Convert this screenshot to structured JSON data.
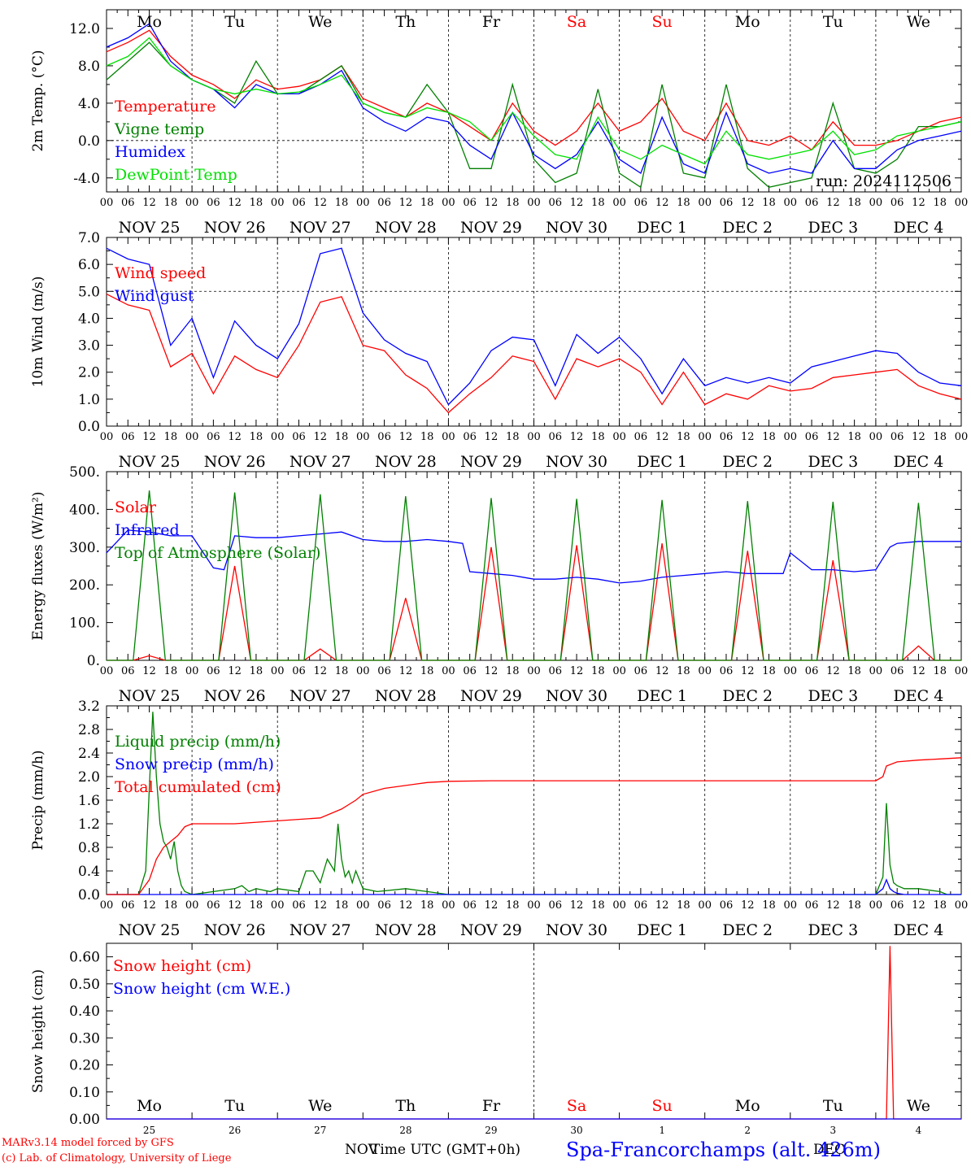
{
  "footer": {
    "model": "MARv3.14 model forced by GFS",
    "credit": "(c) Lab. of Climatology, University of Liege",
    "nov": "NOV",
    "time_label": "Time UTC (GMT+0h)",
    "dec": "DEC",
    "station": "Spa-Francorchamps (alt. 426m)"
  },
  "colors": {
    "red": "#ff0000",
    "green": "#008000",
    "blue": "#0000ff",
    "lightgreen": "#00e000",
    "black": "#000000"
  },
  "time_axis": {
    "hour_ticks": [
      "00",
      "06",
      "12",
      "18"
    ],
    "final_tick": "00",
    "date_labels": [
      "NOV 25",
      "NOV 26",
      "NOV 27",
      "NOV 28",
      "NOV 29",
      "NOV 30",
      "DEC  1",
      "DEC  2",
      "DEC  3",
      "DEC  4"
    ],
    "day_names": [
      "Mo",
      "Tu",
      "We",
      "Th",
      "Fr",
      "Sa",
      "Su",
      "Mo",
      "Tu",
      "We"
    ],
    "weekend_days": [
      5,
      6
    ],
    "day_numbers": [
      "25",
      "26",
      "27",
      "28",
      "29",
      "30",
      "1",
      "2",
      "3",
      "4"
    ]
  },
  "chart_data": [
    {
      "type": "line",
      "ylabel": "2m Temp. (°C)",
      "ylim": [
        -5.5,
        14.0
      ],
      "yticks": [
        -4.0,
        0.0,
        4.0,
        8.0,
        12.0
      ],
      "ytick_labels": [
        "-4.0",
        "0.0",
        "4.0",
        "8.0",
        "12.0"
      ],
      "ref_line": 0.0,
      "annotation": "run: 2024112506",
      "x_unit": "hours since 2024-11-25 00 UTC",
      "series": [
        {
          "name": "Temperature",
          "color": "red",
          "x": [
            0,
            6,
            12,
            18,
            24,
            30,
            36,
            42,
            48,
            54,
            60,
            66,
            72,
            78,
            84,
            90,
            96,
            102,
            108,
            114,
            120,
            126,
            132,
            138,
            144,
            150,
            156,
            162,
            168,
            174,
            180,
            186,
            192,
            198,
            204,
            210,
            216,
            222,
            228,
            234,
            240
          ],
          "y": [
            9.5,
            10.5,
            11.8,
            9.0,
            7.0,
            6.0,
            4.5,
            6.5,
            5.5,
            5.8,
            6.5,
            8.0,
            4.5,
            3.5,
            2.5,
            4.0,
            3.0,
            1.5,
            0.0,
            4.0,
            1.0,
            -0.5,
            1.0,
            4.0,
            1.0,
            2.0,
            4.5,
            1.0,
            0.0,
            4.0,
            0.0,
            -0.5,
            0.5,
            -1.0,
            2.0,
            -0.5,
            -0.5,
            0.0,
            1.0,
            2.0,
            2.5
          ]
        },
        {
          "name": "Vigne temp",
          "color": "green",
          "x": [
            0,
            6,
            12,
            18,
            24,
            30,
            36,
            42,
            48,
            54,
            60,
            66,
            72,
            78,
            84,
            90,
            96,
            102,
            108,
            114,
            120,
            126,
            132,
            138,
            144,
            150,
            156,
            162,
            168,
            174,
            180,
            186,
            192,
            198,
            204,
            210,
            216,
            222,
            228,
            234,
            240
          ],
          "y": [
            6.5,
            8.5,
            10.5,
            8.0,
            6.5,
            5.5,
            4.0,
            8.5,
            5.0,
            5.0,
            6.5,
            8.0,
            4.0,
            3.0,
            2.5,
            6.0,
            3.0,
            -3.0,
            -3.0,
            6.0,
            -2.0,
            -4.5,
            -3.5,
            5.5,
            -3.5,
            -5.0,
            6.0,
            -3.5,
            -4.0,
            6.0,
            -3.0,
            -5.0,
            -4.5,
            -4.0,
            4.0,
            -3.0,
            -3.5,
            -2.0,
            1.5,
            1.5,
            2.0
          ]
        },
        {
          "name": "Humidex",
          "color": "blue",
          "x": [
            0,
            6,
            12,
            18,
            24,
            30,
            36,
            42,
            48,
            54,
            60,
            66,
            72,
            78,
            84,
            90,
            96,
            102,
            108,
            114,
            120,
            126,
            132,
            138,
            144,
            150,
            156,
            162,
            168,
            174,
            180,
            186,
            192,
            198,
            204,
            210,
            216,
            222,
            228,
            234,
            240
          ],
          "y": [
            10.0,
            11.0,
            12.5,
            8.5,
            6.5,
            5.5,
            3.5,
            6.0,
            5.0,
            5.0,
            6.0,
            7.5,
            3.5,
            2.0,
            1.0,
            2.5,
            2.0,
            -0.5,
            -2.0,
            3.0,
            -1.5,
            -3.0,
            -1.5,
            2.0,
            -2.0,
            -3.5,
            2.5,
            -2.5,
            -3.5,
            3.0,
            -2.5,
            -3.5,
            -3.0,
            -3.5,
            0.0,
            -3.0,
            -3.0,
            -1.0,
            0.0,
            0.5,
            1.0
          ]
        },
        {
          "name": "DewPoint Temp",
          "color": "lightgreen",
          "x": [
            0,
            6,
            12,
            18,
            24,
            30,
            36,
            42,
            48,
            54,
            60,
            66,
            72,
            78,
            84,
            90,
            96,
            102,
            108,
            114,
            120,
            126,
            132,
            138,
            144,
            150,
            156,
            162,
            168,
            174,
            180,
            186,
            192,
            198,
            204,
            210,
            216,
            222,
            228,
            234,
            240
          ],
          "y": [
            8.0,
            9.0,
            11.0,
            8.0,
            6.5,
            5.5,
            5.0,
            5.5,
            5.0,
            5.2,
            6.0,
            7.0,
            4.0,
            3.0,
            2.5,
            3.5,
            3.0,
            2.0,
            0.0,
            3.0,
            0.5,
            -1.5,
            -2.0,
            2.5,
            -1.0,
            -2.0,
            -0.5,
            -1.5,
            -2.5,
            1.0,
            -1.5,
            -2.0,
            -1.5,
            -1.0,
            1.0,
            -1.5,
            -1.0,
            0.5,
            1.0,
            1.5,
            2.0
          ]
        }
      ]
    },
    {
      "type": "line",
      "ylabel": "10m Wind (m/s)",
      "ylim": [
        0.0,
        7.0
      ],
      "yticks": [
        0,
        1,
        2,
        3,
        4,
        5,
        6,
        7
      ],
      "ytick_labels": [
        "0.0",
        "1.0",
        "2.0",
        "3.0",
        "4.0",
        "5.0",
        "6.0",
        "7.0"
      ],
      "ref_line": 5.0,
      "x_unit": "hours since 2024-11-25 00 UTC",
      "series": [
        {
          "name": "Wind speed",
          "color": "red",
          "x": [
            0,
            6,
            12,
            18,
            24,
            30,
            36,
            42,
            48,
            54,
            60,
            66,
            72,
            78,
            84,
            90,
            96,
            102,
            108,
            114,
            120,
            126,
            132,
            138,
            144,
            150,
            156,
            162,
            168,
            174,
            180,
            186,
            192,
            198,
            204,
            210,
            216,
            222,
            228,
            234,
            240
          ],
          "y": [
            4.9,
            4.5,
            4.3,
            2.2,
            2.7,
            1.2,
            2.6,
            2.1,
            1.8,
            3.0,
            4.6,
            4.8,
            3.0,
            2.8,
            1.9,
            1.4,
            0.5,
            1.2,
            1.8,
            2.6,
            2.4,
            1.0,
            2.5,
            2.2,
            2.5,
            2.0,
            0.8,
            2.0,
            0.8,
            1.2,
            1.0,
            1.5,
            1.3,
            1.4,
            1.8,
            1.9,
            2.0,
            2.1,
            1.5,
            1.2,
            1.0
          ]
        },
        {
          "name": "Wind gust",
          "color": "blue",
          "x": [
            0,
            6,
            12,
            18,
            24,
            30,
            36,
            42,
            48,
            54,
            60,
            66,
            72,
            78,
            84,
            90,
            96,
            102,
            108,
            114,
            120,
            126,
            132,
            138,
            144,
            150,
            156,
            162,
            168,
            174,
            180,
            186,
            192,
            198,
            204,
            210,
            216,
            222,
            228,
            234,
            240
          ],
          "y": [
            6.6,
            6.2,
            6.0,
            3.0,
            4.0,
            1.8,
            3.9,
            3.0,
            2.5,
            3.8,
            6.4,
            6.6,
            4.2,
            3.2,
            2.7,
            2.4,
            0.8,
            1.6,
            2.8,
            3.3,
            3.2,
            1.5,
            3.4,
            2.7,
            3.3,
            2.5,
            1.2,
            2.5,
            1.5,
            1.8,
            1.6,
            1.8,
            1.6,
            2.2,
            2.4,
            2.6,
            2.8,
            2.7,
            2.0,
            1.6,
            1.5
          ]
        }
      ]
    },
    {
      "type": "line",
      "ylabel": "Energy fluxes (W/m²)",
      "ylim": [
        0,
        500
      ],
      "yticks": [
        0,
        100,
        200,
        300,
        400,
        500
      ],
      "ytick_labels": [
        "0.",
        "100.",
        "200.",
        "300.",
        "400.",
        "500."
      ],
      "x_unit": "hours since 2024-11-25 00 UTC",
      "series": [
        {
          "name": "Solar",
          "color": "red",
          "type": "daily-peaks",
          "peak_hour": 12,
          "half_width_hours": 4.5,
          "peaks": [
            12,
            250,
            30,
            165,
            300,
            305,
            310,
            290,
            265,
            38
          ]
        },
        {
          "name": "Infrared",
          "color": "blue",
          "x": [
            0,
            6,
            12,
            18,
            24,
            30,
            33,
            36,
            42,
            48,
            54,
            60,
            66,
            72,
            78,
            84,
            90,
            96,
            100,
            102,
            108,
            114,
            120,
            126,
            132,
            138,
            144,
            150,
            156,
            162,
            168,
            174,
            180,
            186,
            190,
            192,
            198,
            204,
            210,
            216,
            220,
            222,
            228,
            234,
            240
          ],
          "y": [
            285,
            345,
            340,
            330,
            330,
            245,
            240,
            330,
            325,
            325,
            330,
            335,
            340,
            320,
            315,
            315,
            320,
            315,
            310,
            235,
            230,
            225,
            215,
            215,
            220,
            215,
            205,
            210,
            220,
            225,
            230,
            235,
            230,
            230,
            230,
            285,
            240,
            240,
            235,
            240,
            300,
            310,
            315,
            315,
            315
          ]
        },
        {
          "name": "Top of Atmosphere (Solar)",
          "color": "green",
          "type": "daily-peaks",
          "peak_hour": 12,
          "half_width_hours": 4.5,
          "peaks": [
            450,
            445,
            440,
            435,
            430,
            428,
            425,
            422,
            420,
            417
          ]
        }
      ]
    },
    {
      "type": "line",
      "ylabel": "Precip (mm/h)",
      "ylim": [
        0.0,
        3.2
      ],
      "yticks": [
        0,
        0.4,
        0.8,
        1.2,
        1.6,
        2.0,
        2.4,
        2.8,
        3.2
      ],
      "ytick_labels": [
        "0.0",
        "0.4",
        "0.8",
        "1.2",
        "1.6",
        "2.0",
        "2.4",
        "2.8",
        "3.2"
      ],
      "x_unit": "hours since 2024-11-25 00 UTC",
      "series": [
        {
          "name": "Liquid precip (mm/h)",
          "color": "green",
          "x": [
            0,
            9,
            11,
            12,
            13,
            14,
            15,
            16,
            17,
            18,
            19,
            20,
            21,
            22,
            24,
            30,
            36,
            38,
            40,
            42,
            46,
            48,
            54,
            56,
            58,
            60,
            62,
            64,
            65,
            66,
            67,
            68,
            69,
            70,
            72,
            76,
            84,
            90,
            96,
            216,
            218,
            219,
            220,
            221,
            222,
            224,
            228,
            234,
            236,
            240
          ],
          "y": [
            0,
            0,
            0.4,
            1.8,
            3.1,
            2.0,
            1.2,
            0.9,
            0.8,
            0.6,
            0.9,
            0.4,
            0.15,
            0.05,
            0,
            0.05,
            0.1,
            0.15,
            0.05,
            0.1,
            0.05,
            0.1,
            0.05,
            0.4,
            0.4,
            0.2,
            0.6,
            0.4,
            1.2,
            0.6,
            0.3,
            0.4,
            0.2,
            0.4,
            0.1,
            0.05,
            0.1,
            0.05,
            0,
            0,
            0.3,
            1.55,
            0.5,
            0.2,
            0.15,
            0.1,
            0.1,
            0.05,
            0,
            0
          ]
        },
        {
          "name": "Snow precip (mm/h)",
          "color": "blue",
          "x": [
            0,
            216,
            218,
            219,
            220,
            221,
            222,
            224,
            240
          ],
          "y": [
            0,
            0,
            0.1,
            0.25,
            0.1,
            0.05,
            0.02,
            0,
            0
          ]
        },
        {
          "name": "Total cumulated (cm)",
          "color": "red",
          "x": [
            0,
            9,
            12,
            14,
            16,
            18,
            20,
            22,
            24,
            36,
            48,
            60,
            66,
            70,
            72,
            78,
            84,
            90,
            96,
            108,
            120,
            132,
            144,
            156,
            168,
            180,
            192,
            204,
            210,
            214,
            216,
            218,
            219,
            222,
            228,
            234,
            240
          ],
          "y": [
            0,
            0,
            0.25,
            0.6,
            0.8,
            0.9,
            1.0,
            1.15,
            1.2,
            1.2,
            1.25,
            1.3,
            1.45,
            1.6,
            1.7,
            1.8,
            1.85,
            1.9,
            1.92,
            1.93,
            1.93,
            1.93,
            1.93,
            1.93,
            1.93,
            1.93,
            1.93,
            1.93,
            1.93,
            1.93,
            1.93,
            2.0,
            2.18,
            2.25,
            2.28,
            2.3,
            2.32
          ]
        }
      ]
    },
    {
      "type": "line",
      "ylabel": "Snow height (cm)",
      "ylim": [
        0.0,
        0.65
      ],
      "yticks": [
        0,
        0.1,
        0.2,
        0.3,
        0.4,
        0.5,
        0.6
      ],
      "ytick_labels": [
        "0.00",
        "0.10",
        "0.20",
        "0.30",
        "0.40",
        "0.50",
        "0.60"
      ],
      "x_unit": "hours since 2024-11-25 00 UTC",
      "series": [
        {
          "name": "Snow height (cm)",
          "color": "red",
          "x": [
            0,
            219,
            220,
            221,
            222,
            240
          ],
          "y": [
            0,
            0,
            0.64,
            0,
            0,
            0
          ]
        },
        {
          "name": "Snow height (cm W.E.)",
          "color": "blue",
          "x": [
            0,
            240
          ],
          "y": [
            0,
            0
          ]
        }
      ]
    }
  ]
}
